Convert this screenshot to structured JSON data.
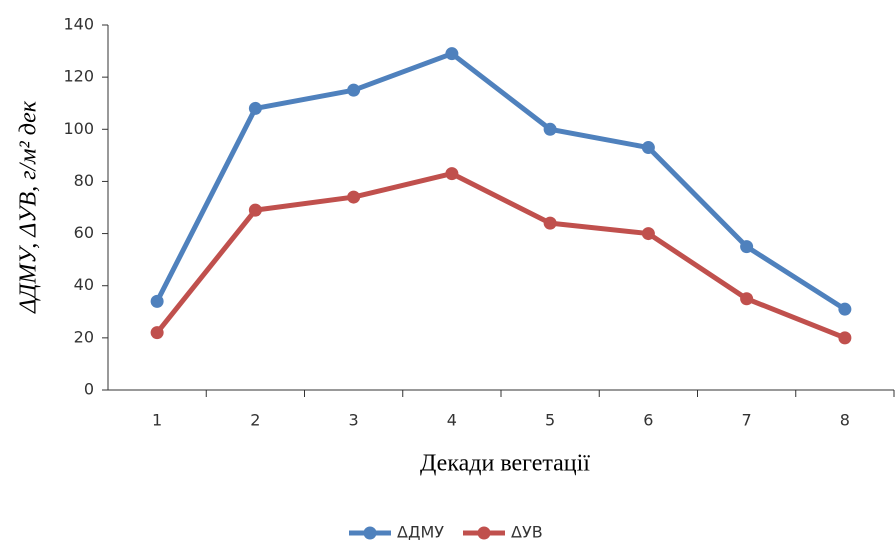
{
  "chart_data": {
    "type": "line",
    "x_label": "Декади вегетації",
    "y_label": "ΔДМУ, ΔУВ, г/м² дек",
    "categories": [
      "1",
      "2",
      "3",
      "4",
      "5",
      "6",
      "7",
      "8"
    ],
    "series": [
      {
        "name": "ΔДМУ",
        "color": "#4f81bd",
        "values": [
          34,
          108,
          115,
          129,
          100,
          93,
          55,
          31
        ]
      },
      {
        "name": "ΔУВ",
        "color": "#c0504d",
        "values": [
          22,
          69,
          74,
          83,
          64,
          60,
          35,
          20
        ]
      }
    ],
    "ylim": [
      0,
      140
    ],
    "yticks": [
      0,
      20,
      40,
      60,
      80,
      100,
      120,
      140
    ],
    "grid": false,
    "legend": "bottom"
  }
}
